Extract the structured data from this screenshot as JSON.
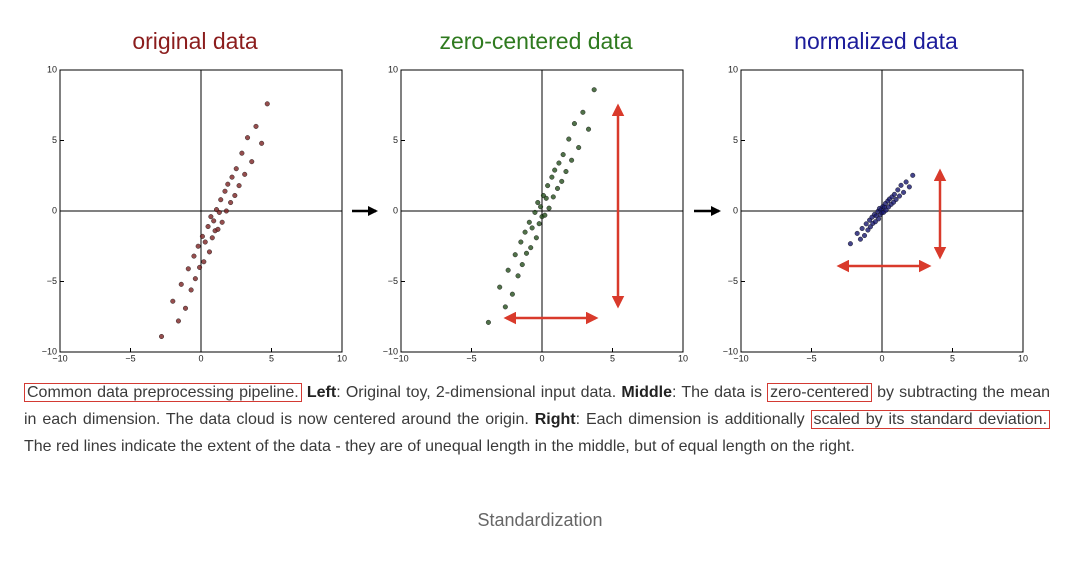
{
  "chart_data": [
    {
      "type": "scatter",
      "title": "original data",
      "title_color": "#8b1d1d",
      "color": "#7a2222",
      "x": [
        -2.8,
        -2.0,
        -1.6,
        -1.4,
        -1.1,
        -0.9,
        -0.7,
        -0.5,
        -0.4,
        -0.2,
        -0.1,
        0.1,
        0.2,
        0.3,
        0.5,
        0.6,
        0.7,
        0.8,
        0.9,
        1.0,
        1.1,
        1.2,
        1.3,
        1.4,
        1.5,
        1.7,
        1.8,
        1.9,
        2.1,
        2.2,
        2.4,
        2.5,
        2.7,
        2.9,
        3.1,
        3.3,
        3.6,
        3.9,
        4.3,
        4.7
      ],
      "y": [
        -8.9,
        -6.4,
        -7.8,
        -5.2,
        -6.9,
        -4.1,
        -5.6,
        -3.2,
        -4.8,
        -2.5,
        -4.0,
        -1.8,
        -3.6,
        -2.2,
        -1.1,
        -2.9,
        -0.4,
        -1.9,
        -0.7,
        -1.4,
        0.1,
        -1.3,
        -0.1,
        0.8,
        -0.8,
        1.4,
        0.0,
        1.9,
        0.6,
        2.4,
        1.1,
        3.0,
        1.8,
        4.1,
        2.6,
        5.2,
        3.5,
        6.0,
        4.8,
        7.6
      ],
      "xlim": [
        -10,
        10
      ],
      "ylim": [
        -10,
        10
      ],
      "xticks": [
        {
          "value": -10,
          "label": "−10"
        },
        {
          "value": -5,
          "label": "−5"
        },
        0,
        5,
        10
      ],
      "yticks": [
        {
          "value": -10,
          "label": "−10"
        },
        {
          "value": -5,
          "label": "−5"
        },
        0,
        5,
        10
      ]
    },
    {
      "type": "scatter",
      "title": "zero-centered data",
      "title_color": "#2f7a1f",
      "color": "#244d1c",
      "x": [
        -3.8,
        -3.0,
        -2.6,
        -2.4,
        -2.1,
        -1.9,
        -1.7,
        -1.5,
        -1.4,
        -1.2,
        -1.1,
        -0.9,
        -0.8,
        -0.7,
        -0.5,
        -0.4,
        -0.3,
        -0.2,
        -0.1,
        0.0,
        0.1,
        0.2,
        0.3,
        0.4,
        0.5,
        0.7,
        0.8,
        0.9,
        1.1,
        1.2,
        1.4,
        1.5,
        1.7,
        1.9,
        2.1,
        2.3,
        2.6,
        2.9,
        3.3,
        3.7
      ],
      "y": [
        -7.9,
        -5.4,
        -6.8,
        -4.2,
        -5.9,
        -3.1,
        -4.6,
        -2.2,
        -3.8,
        -1.5,
        -3.0,
        -0.8,
        -2.6,
        -1.2,
        -0.1,
        -1.9,
        0.6,
        -0.9,
        0.3,
        -0.4,
        1.1,
        -0.3,
        0.9,
        1.8,
        0.2,
        2.4,
        1.0,
        2.9,
        1.6,
        3.4,
        2.1,
        4.0,
        2.8,
        5.1,
        3.6,
        6.2,
        4.5,
        7.0,
        5.8,
        8.6
      ],
      "xlim": [
        -10,
        10
      ],
      "ylim": [
        -10,
        10
      ],
      "xticks": [
        {
          "value": -10,
          "label": "−10"
        },
        {
          "value": -5,
          "label": "−5"
        },
        0,
        5,
        10
      ],
      "yticks": [
        {
          "value": -10,
          "label": "−10"
        },
        {
          "value": -5,
          "label": "−5"
        },
        0,
        5,
        10
      ]
    },
    {
      "type": "scatter",
      "title": "normalized data",
      "title_color": "#1c1c9a",
      "color": "#16166e",
      "x": [
        -2.24,
        -1.76,
        -1.53,
        -1.41,
        -1.24,
        -1.12,
        -1.0,
        -0.88,
        -0.82,
        -0.71,
        -0.65,
        -0.53,
        -0.47,
        -0.41,
        -0.29,
        -0.24,
        -0.18,
        -0.12,
        -0.06,
        0.0,
        0.06,
        0.12,
        0.18,
        0.24,
        0.29,
        0.41,
        0.47,
        0.53,
        0.65,
        0.71,
        0.82,
        0.88,
        1.0,
        1.12,
        1.24,
        1.35,
        1.53,
        1.71,
        1.94,
        2.18
      ],
      "y": [
        -2.32,
        -1.59,
        -2.0,
        -1.24,
        -1.74,
        -0.91,
        -1.35,
        -0.65,
        -1.12,
        -0.44,
        -0.88,
        -0.24,
        -0.76,
        -0.35,
        -0.03,
        -0.56,
        0.18,
        -0.26,
        0.09,
        -0.12,
        0.32,
        -0.09,
        0.26,
        0.53,
        0.06,
        0.71,
        0.29,
        0.85,
        0.47,
        1.0,
        0.62,
        1.18,
        0.82,
        1.5,
        1.06,
        1.82,
        1.32,
        2.06,
        1.71,
        2.53
      ],
      "xlim": [
        -10,
        10
      ],
      "ylim": [
        -10,
        10
      ],
      "xticks": [
        {
          "value": -10,
          "label": "−10"
        },
        {
          "value": -5,
          "label": "−5"
        },
        0,
        5,
        10
      ],
      "yticks": [
        {
          "value": -10,
          "label": "−10"
        },
        {
          "value": -5,
          "label": "−5"
        },
        0,
        5,
        10
      ]
    }
  ],
  "caption": [
    "Common data preprocessing pipeline.",
    "Left",
    ": Original toy, 2-dimensional input data.",
    "Middle",
    ": The data is",
    "zero-centered",
    "by subtracting the mean in each dimension. The data cloud is now centered around the origin.",
    "Right",
    ": Each dimension is additionally",
    "scaled by its standard deviation.",
    "The red lines indicate the extent of the data - they are of unequal length in the middle, but of equal length on the right."
  ],
  "figure_caption": "Standardization"
}
